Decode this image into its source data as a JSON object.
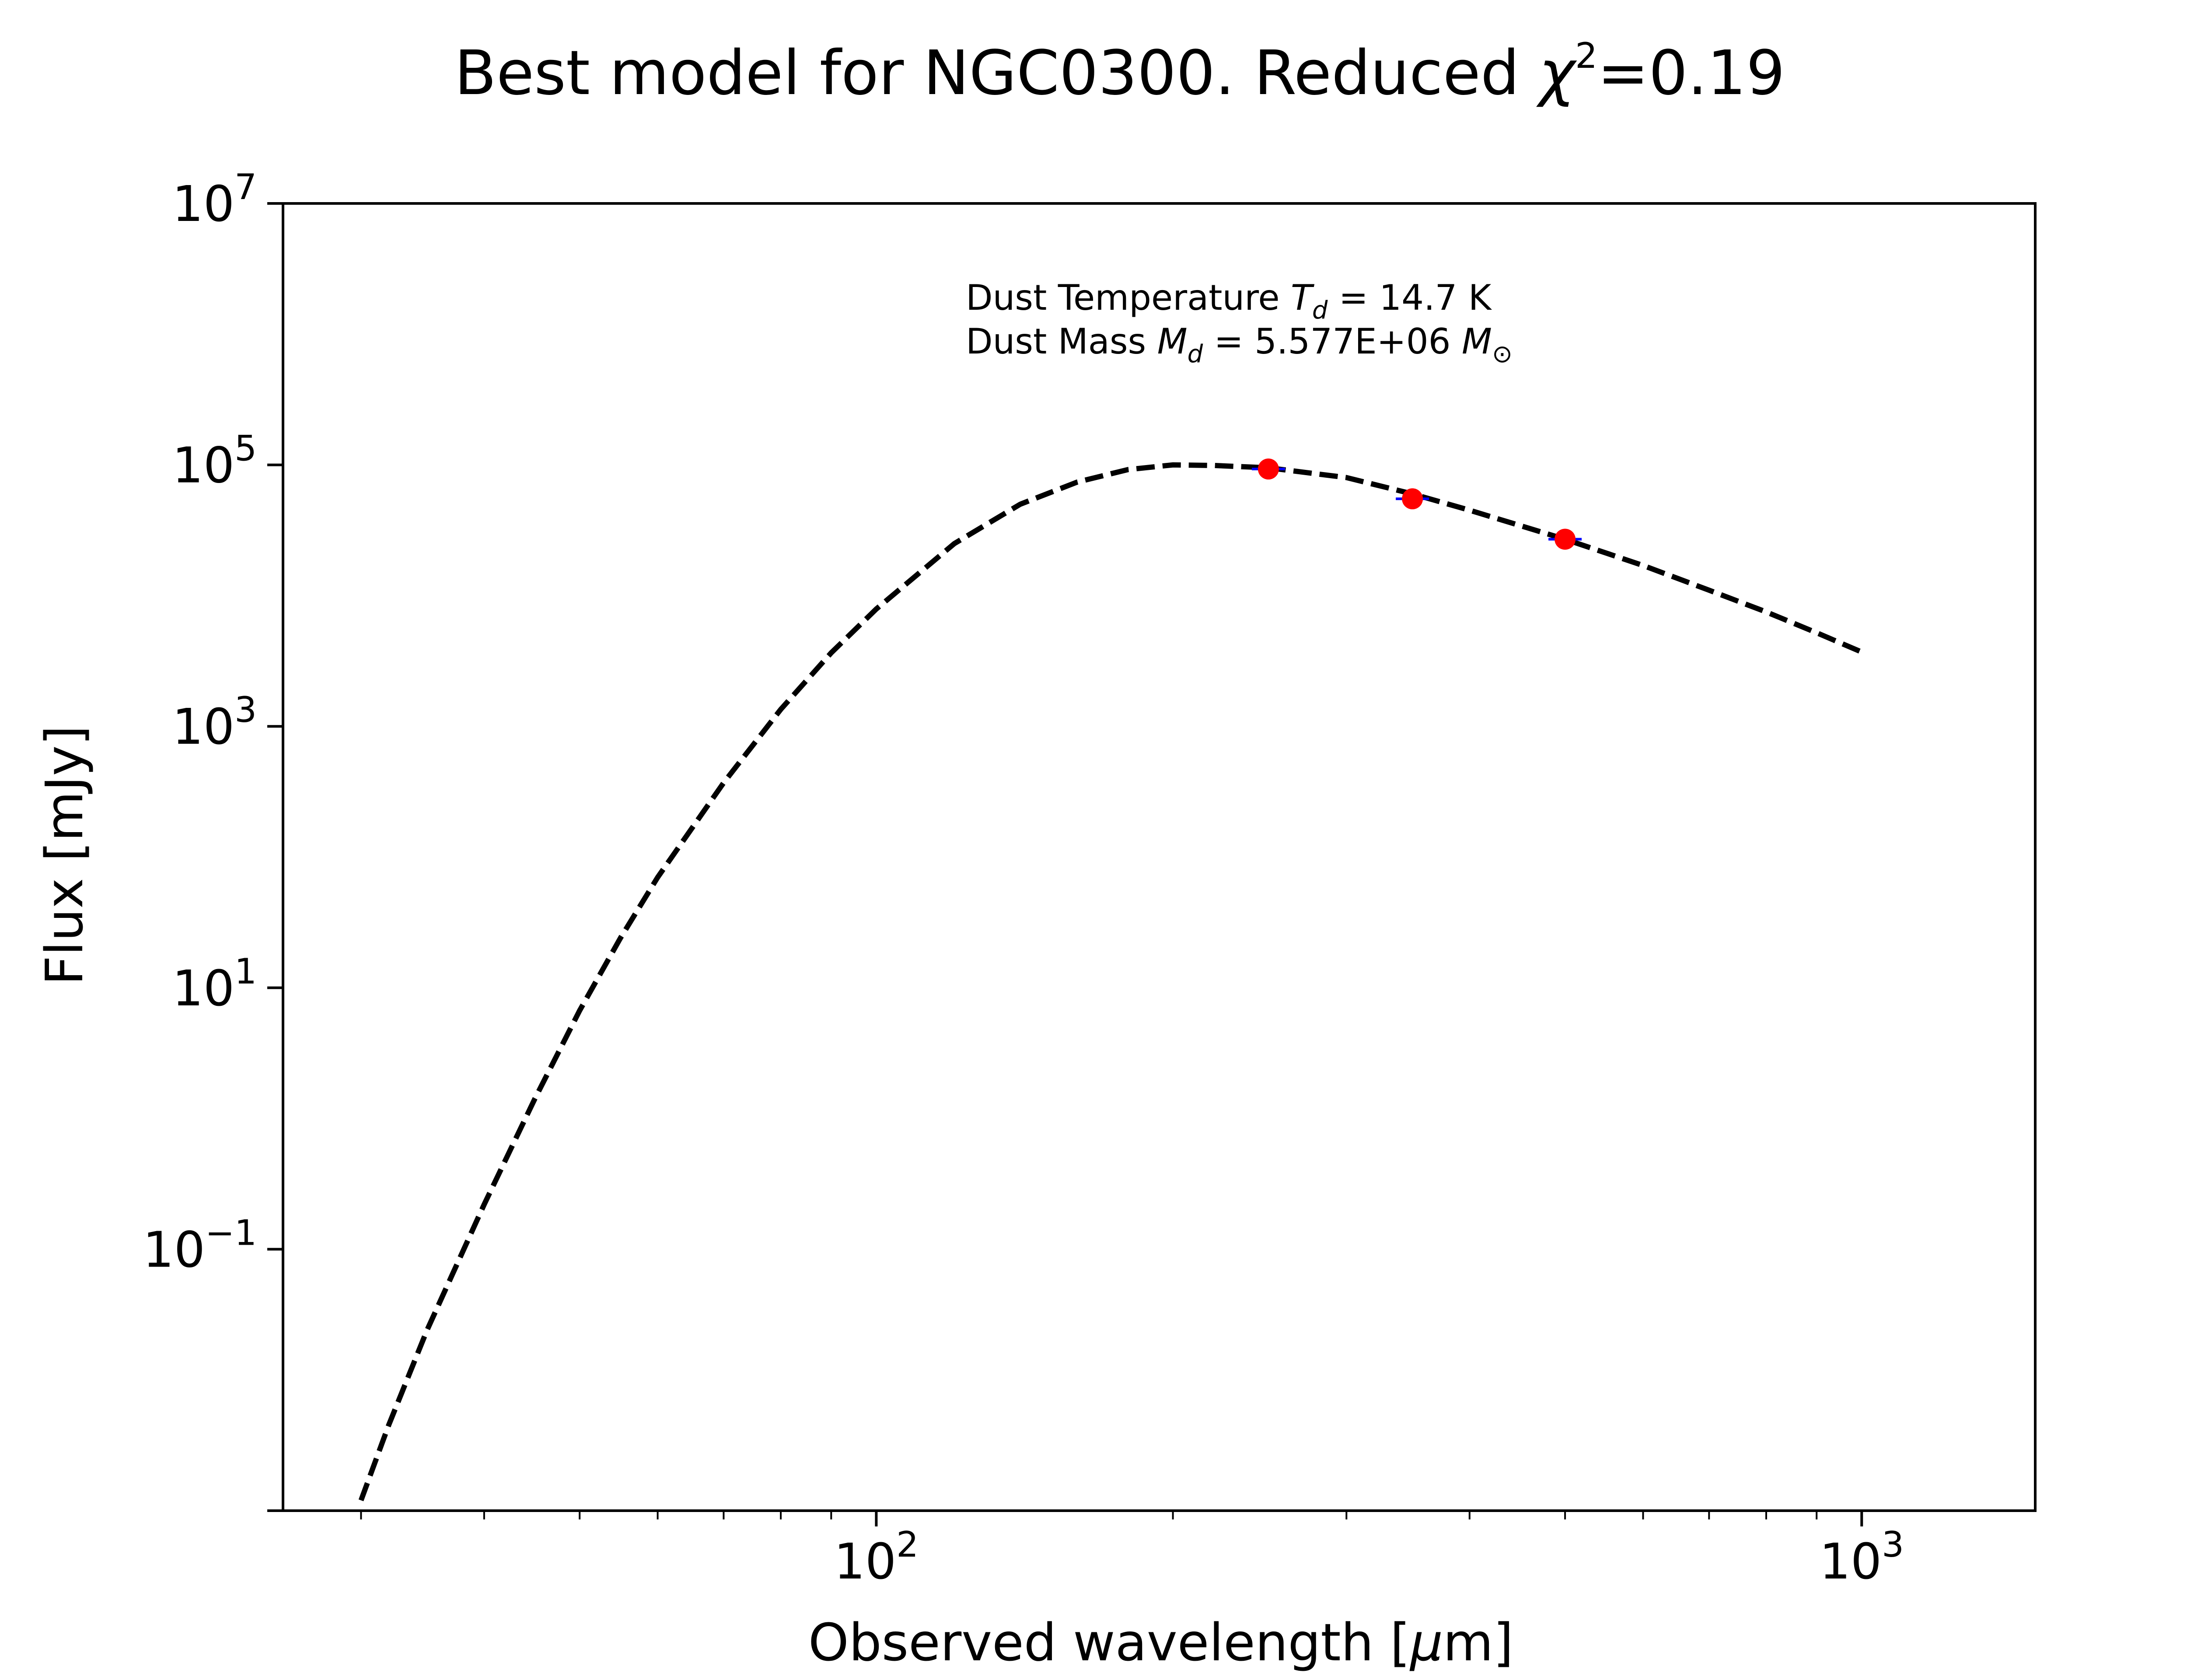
{
  "chart_data": {
    "type": "scatter",
    "title": {
      "main": "Best model for NGC0300. Reduced ",
      "symbol": "χ",
      "sup": "2",
      "tail": "=0.19"
    },
    "xlabel": {
      "main": "Observed wavelength [",
      "symbol": "μ",
      "tail": "m]"
    },
    "ylabel": "Flux [mJy]",
    "x_scale": "log",
    "y_scale": "log",
    "xlim": [
      25,
      1500
    ],
    "ylim": [
      0.001,
      10000000
    ],
    "x_ticks": [
      {
        "value": 100,
        "base": "10",
        "exp": "2"
      },
      {
        "value": 1000,
        "base": "10",
        "exp": "3"
      }
    ],
    "y_ticks": [
      {
        "value": 0.1,
        "base": "10",
        "exp": "−1"
      },
      {
        "value": 10,
        "base": "10",
        "exp": "1"
      },
      {
        "value": 1000,
        "base": "10",
        "exp": "3"
      },
      {
        "value": 100000,
        "base": "10",
        "exp": "5"
      },
      {
        "value": 10000000,
        "base": "10",
        "exp": "7"
      }
    ],
    "grid": false,
    "annotations": {
      "temperature": {
        "prefix": "Dust Temperature ",
        "symbol": "T",
        "sub": "d",
        "suffix": " = 14.7 K"
      },
      "mass": {
        "prefix": "Dust Mass ",
        "symbol": "M",
        "sub": "d",
        "value": " = 5.577E+06 ",
        "unit_symbol": "M",
        "unit_sub": "⊙"
      }
    },
    "series": [
      {
        "kind": "model_curve",
        "style": "dashed",
        "color": "#000000",
        "x": [
          30,
          32,
          35,
          40,
          45,
          50,
          55,
          60,
          70,
          80,
          90,
          100,
          120,
          140,
          160,
          180,
          200,
          220,
          250,
          300,
          350,
          400,
          500,
          600,
          700,
          800,
          900,
          1000
        ],
        "y": [
          0.0012,
          0.0045,
          0.024,
          0.22,
          1.4,
          6.7,
          24,
          70,
          370,
          1350,
          3650,
          7900,
          25000,
          50000,
          74000,
          92000,
          100000,
          99000,
          95000,
          80000,
          60000,
          45000,
          27000,
          17000,
          11000,
          7500,
          5200,
          3700
        ]
      },
      {
        "kind": "observations",
        "marker": "circle",
        "color": "#ff0000",
        "errorbar_color": "#0000ff",
        "x": [
          250,
          350,
          500
        ],
        "y": [
          93000,
          55000,
          27000
        ]
      }
    ]
  }
}
